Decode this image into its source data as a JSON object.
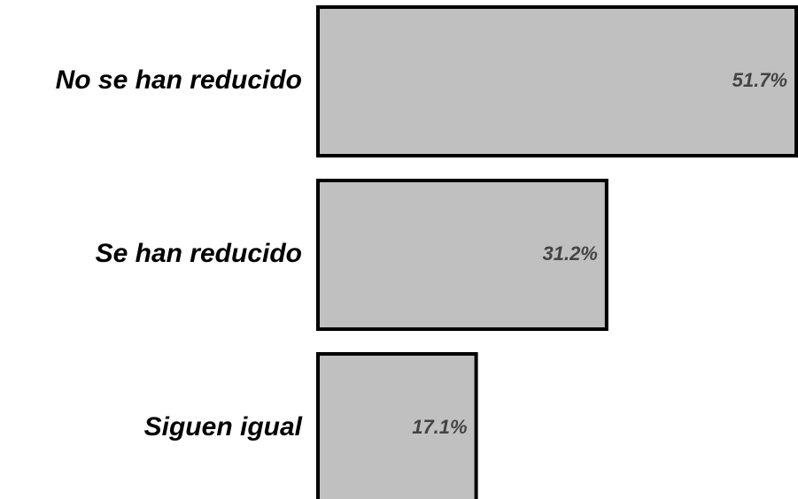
{
  "chart_data": {
    "type": "bar",
    "orientation": "horizontal",
    "categories": [
      "No se han reducido",
      "Se han reducido",
      "Siguen igual"
    ],
    "values": [
      51.7,
      31.2,
      17.1
    ],
    "value_labels": [
      "51.7%",
      "31.2%",
      "17.1%"
    ],
    "unit": "%",
    "title": "",
    "xlabel": "",
    "ylabel": "",
    "xlim": [
      0,
      51.7
    ],
    "grid": false,
    "legend": "none",
    "colors": {
      "bar_fill": "#c0c0c0",
      "bar_stroke": "#000000",
      "category_text": "#000000",
      "value_text": "#444444"
    }
  }
}
